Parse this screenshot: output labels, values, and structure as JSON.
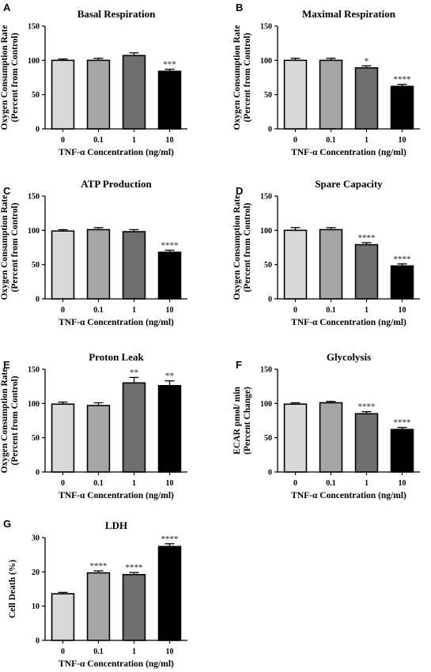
{
  "chart_data": [
    {
      "panel": "A",
      "type": "bar",
      "title": "Basal Respiration",
      "xlabel": "TNF-α Concentration (ng/ml)",
      "ylabel": [
        "Oxygen Consumption Rate",
        "(Percent from Control)"
      ],
      "categories": [
        "0",
        "0.1",
        "1",
        "10"
      ],
      "values": [
        100,
        100,
        107,
        84
      ],
      "errors": [
        2,
        3,
        4,
        3
      ],
      "significance": [
        "",
        "",
        "",
        "***"
      ],
      "ylim": [
        0,
        150
      ],
      "yticks": [
        0,
        50,
        100,
        150
      ],
      "bar_colors": [
        "#d9d9d9",
        "#a6a6a6",
        "#6e6e6e",
        "#000000"
      ]
    },
    {
      "panel": "B",
      "type": "bar",
      "title": "Maximal Respiration",
      "xlabel": "TNF-α Concentration (ng/ml)",
      "ylabel": [
        "Oxygen Consumption Rate",
        "(Percent from Control)"
      ],
      "categories": [
        "0",
        "0.1",
        "1",
        "10"
      ],
      "values": [
        100,
        100,
        89,
        62
      ],
      "errors": [
        3,
        3,
        3,
        3
      ],
      "significance": [
        "",
        "",
        "*",
        "****"
      ],
      "ylim": [
        0,
        150
      ],
      "yticks": [
        0,
        50,
        100,
        150
      ],
      "bar_colors": [
        "#d9d9d9",
        "#a6a6a6",
        "#6e6e6e",
        "#000000"
      ]
    },
    {
      "panel": "C",
      "type": "bar",
      "title": "ATP Production",
      "xlabel": "TNF-α Concentration (ng/ml)",
      "ylabel": [
        "Oxygen Consumption Rate",
        "(Percent from Control)"
      ],
      "categories": [
        "0",
        "0.1",
        "1",
        "10"
      ],
      "values": [
        99,
        101,
        98,
        68
      ],
      "errors": [
        2,
        3,
        3,
        3
      ],
      "significance": [
        "",
        "",
        "",
        "****"
      ],
      "ylim": [
        0,
        150
      ],
      "yticks": [
        0,
        50,
        100,
        150
      ],
      "bar_colors": [
        "#d9d9d9",
        "#a6a6a6",
        "#6e6e6e",
        "#000000"
      ]
    },
    {
      "panel": "D",
      "type": "bar",
      "title": "Spare Capacity",
      "xlabel": "TNF-α Concentration (ng/ml)",
      "ylabel": [
        "Oxygen Consumption Rate",
        "(Percent from Control)"
      ],
      "categories": [
        "0",
        "0.1",
        "1",
        "10"
      ],
      "values": [
        100,
        101,
        79,
        48
      ],
      "errors": [
        4,
        3,
        3,
        3
      ],
      "significance": [
        "",
        "",
        "****",
        "****"
      ],
      "ylim": [
        0,
        150
      ],
      "yticks": [
        0,
        50,
        100,
        150
      ],
      "bar_colors": [
        "#d9d9d9",
        "#a6a6a6",
        "#6e6e6e",
        "#000000"
      ]
    },
    {
      "panel": "E",
      "type": "bar",
      "title": "Proton Leak",
      "xlabel": "TNF-α Concentration (ng/ml)",
      "ylabel": [
        "Oxygen Consumption Rate",
        "(Percent from Control)"
      ],
      "categories": [
        "0",
        "0.1",
        "1",
        "10"
      ],
      "values": [
        99,
        97,
        130,
        126
      ],
      "errors": [
        3,
        4,
        8,
        7
      ],
      "significance": [
        "",
        "",
        "**",
        "**"
      ],
      "ylim": [
        0,
        150
      ],
      "yticks": [
        0,
        50,
        100,
        150
      ],
      "bar_colors": [
        "#d9d9d9",
        "#a6a6a6",
        "#6e6e6e",
        "#000000"
      ]
    },
    {
      "panel": "F",
      "type": "bar",
      "title": "Glycolysis",
      "xlabel": "TNF-α Concentration (ng/ml)",
      "ylabel": [
        "ECAR pmol/ min",
        "(Percent Change)"
      ],
      "categories": [
        "0",
        "0.1",
        "1",
        "10"
      ],
      "values": [
        99,
        101,
        85,
        62
      ],
      "errors": [
        2,
        2,
        3,
        3
      ],
      "significance": [
        "",
        "",
        "****",
        "****"
      ],
      "ylim": [
        0,
        150
      ],
      "yticks": [
        0,
        50,
        100,
        150
      ],
      "bar_colors": [
        "#d9d9d9",
        "#a6a6a6",
        "#6e6e6e",
        "#000000"
      ]
    },
    {
      "panel": "G",
      "type": "bar",
      "title": "LDH",
      "xlabel": "TNF-α Concentration (ng/ml)",
      "ylabel": [
        "Cell Death (%)"
      ],
      "categories": [
        "0",
        "0.1",
        "1",
        "10"
      ],
      "values": [
        13.6,
        19.7,
        19.2,
        27.4
      ],
      "errors": [
        0.4,
        0.6,
        0.6,
        0.8
      ],
      "significance": [
        "",
        "****",
        "****",
        "****"
      ],
      "ylim": [
        0,
        30
      ],
      "yticks": [
        0,
        10,
        20,
        30
      ],
      "bar_colors": [
        "#d9d9d9",
        "#a6a6a6",
        "#6e6e6e",
        "#000000"
      ]
    }
  ]
}
